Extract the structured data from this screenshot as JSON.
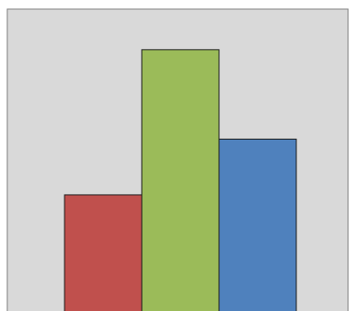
{
  "chart_data": {
    "type": "bar",
    "categories": [
      "",
      "",
      ""
    ],
    "values": [
      100,
      225,
      148
    ],
    "ylim": [
      0,
      260
    ],
    "grid": false,
    "legend": "none",
    "colors": [
      "#c0504d",
      "#9bbb59",
      "#4f81bd"
    ],
    "plot_background": "#d9d9d9",
    "border_color": "#7f7f7f"
  }
}
